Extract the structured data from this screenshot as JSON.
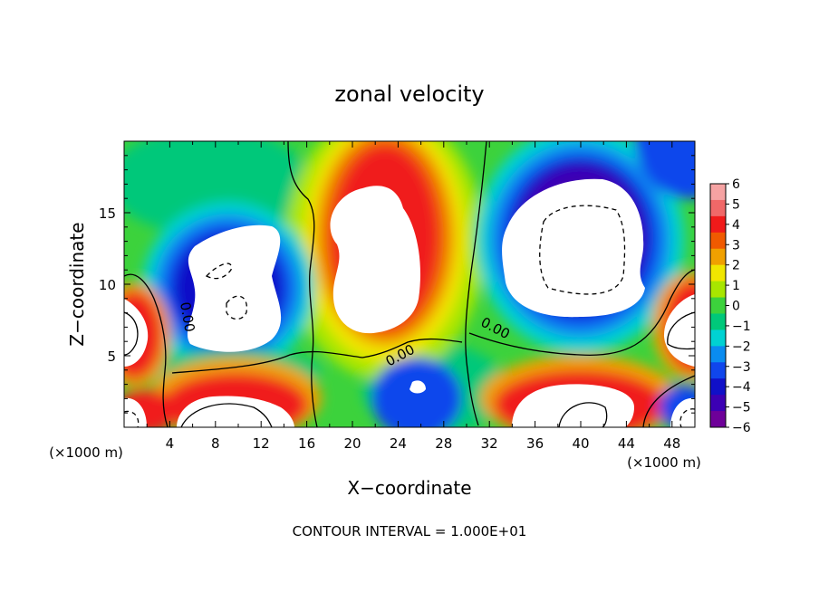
{
  "chart_data": {
    "type": "heatmap",
    "title": "zonal velocity",
    "xlabel": "X−coordinate",
    "ylabel": "Z−coordinate",
    "x_unit_left": "(×1000 m)",
    "x_unit_right": "(×1000 m)",
    "xlim": [
      0,
      50
    ],
    "ylim": [
      0,
      20
    ],
    "xticks": [
      4,
      8,
      12,
      16,
      20,
      24,
      28,
      32,
      36,
      40,
      44,
      48
    ],
    "yticks": [
      5,
      10,
      15
    ],
    "colorbar": {
      "ticks": [
        6,
        5,
        4,
        3,
        2,
        1,
        0,
        -1,
        -2,
        -3,
        -4,
        -5,
        -6
      ],
      "tick_labels": [
        "6",
        "5",
        "4",
        "3",
        "2",
        "1",
        "0",
        "−1",
        "−2",
        "−3",
        "−4",
        "−5",
        "−6"
      ],
      "colors": [
        "#f6a3a3",
        "#f06868",
        "#f01a1a",
        "#f05a00",
        "#f0a000",
        "#f0e600",
        "#a8e600",
        "#3cd23c",
        "#00c87a",
        "#00d2d2",
        "#0a8cf0",
        "#1046ec",
        "#1010c8",
        "#3c00b4",
        "#6e0099"
      ],
      "range": [
        -6,
        6
      ],
      "above_range_color": "#ffffff"
    },
    "contour_labels": [
      {
        "text": "0.00",
        "x": 5.5,
        "z": 7.7,
        "rotate": 80
      },
      {
        "text": "0.00",
        "x": 24.2,
        "z": 5.0,
        "rotate": -28
      },
      {
        "text": "0.00",
        "x": 32.5,
        "z": 6.9,
        "rotate": 28
      }
    ],
    "contour_interval": "CONTOUR INTERVAL = 1.000E+01",
    "grid": false,
    "legend": "colorbar-right"
  }
}
